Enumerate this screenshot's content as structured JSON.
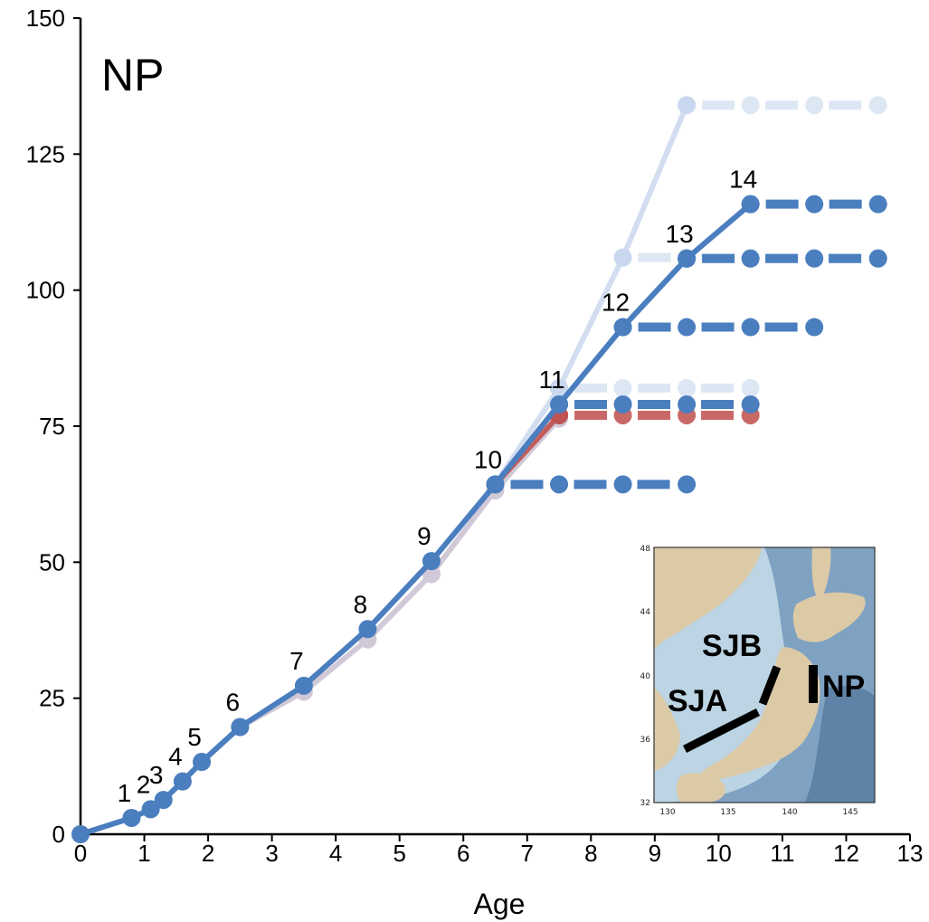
{
  "chart_data": {
    "type": "line",
    "title": "NP",
    "xlabel": "Age",
    "ylabel": "",
    "xlim": [
      0,
      13
    ],
    "ylim": [
      0,
      150
    ],
    "x_ticks": [
      0,
      1,
      2,
      3,
      4,
      5,
      6,
      7,
      8,
      9,
      10,
      11,
      12,
      13
    ],
    "y_ticks": [
      0,
      25,
      50,
      75,
      100,
      125,
      150
    ],
    "grid": false,
    "colors": {
      "blue": "#4a7ebf",
      "light_blue": "#c3d4ec",
      "red": "#c0504d",
      "purple": "#9b8aa8"
    },
    "stage_labels": [
      {
        "text": "1",
        "x": 0.8,
        "y": 3
      },
      {
        "text": "2",
        "x": 1.1,
        "y": 4.6
      },
      {
        "text": "3",
        "x": 1.3,
        "y": 6.3
      },
      {
        "text": "4",
        "x": 1.6,
        "y": 9.7
      },
      {
        "text": "5",
        "x": 1.9,
        "y": 13.3
      },
      {
        "text": "6",
        "x": 2.5,
        "y": 19.7
      },
      {
        "text": "7",
        "x": 3.5,
        "y": 27.3
      },
      {
        "text": "8",
        "x": 4.5,
        "y": 37.7
      },
      {
        "text": "9",
        "x": 5.5,
        "y": 50.2
      },
      {
        "text": "10",
        "x": 6.5,
        "y": 64.3
      },
      {
        "text": "11",
        "x": 7.5,
        "y": 79
      },
      {
        "text": "12",
        "x": 8.5,
        "y": 93.2
      },
      {
        "text": "13",
        "x": 9.5,
        "y": 105.8
      },
      {
        "text": "14",
        "x": 10.5,
        "y": 115.8
      }
    ],
    "growth_series": [
      {
        "color": "purple",
        "opacity": 0.45,
        "points": [
          [
            0,
            0
          ],
          [
            0.8,
            3
          ],
          [
            1.1,
            4.6
          ],
          [
            1.3,
            6.3
          ],
          [
            1.6,
            9.7
          ],
          [
            1.9,
            13.3
          ],
          [
            2.5,
            19.7
          ],
          [
            3.5,
            26.2
          ],
          [
            4.5,
            35.8
          ],
          [
            5.5,
            47.8
          ],
          [
            6.5,
            63.2
          ],
          [
            7.5,
            76.4
          ]
        ]
      },
      {
        "color": "red",
        "opacity": 0.9,
        "points": [
          [
            6.5,
            64.3
          ],
          [
            7.5,
            77
          ]
        ]
      },
      {
        "color": "light_blue",
        "opacity": 0.75,
        "points": [
          [
            6.5,
            64.3
          ],
          [
            7.5,
            82
          ],
          [
            8.5,
            106
          ],
          [
            9.5,
            134
          ]
        ]
      },
      {
        "color": "blue",
        "opacity": 1,
        "points": [
          [
            0,
            0
          ],
          [
            0.8,
            3
          ],
          [
            1.1,
            4.6
          ],
          [
            1.3,
            6.3
          ],
          [
            1.6,
            9.7
          ],
          [
            1.9,
            13.3
          ],
          [
            2.5,
            19.7
          ],
          [
            3.5,
            27.3
          ],
          [
            4.5,
            37.7
          ],
          [
            5.5,
            50.2
          ],
          [
            6.5,
            64.3
          ],
          [
            7.5,
            79
          ],
          [
            8.5,
            93.2
          ],
          [
            9.5,
            105.8
          ],
          [
            10.5,
            115.8
          ]
        ]
      }
    ],
    "plateau_series": [
      {
        "color": "light_blue",
        "opacity": 0.55,
        "y": 134,
        "x": [
          9.5,
          10.5,
          11.5,
          12.5
        ]
      },
      {
        "color": "light_blue",
        "opacity": 0.55,
        "y": 106,
        "x": [
          8.5,
          9.5,
          10.5,
          11.5,
          12.5
        ]
      },
      {
        "color": "light_blue",
        "opacity": 0.55,
        "y": 82,
        "x": [
          7.5,
          8.5,
          9.5,
          10.5
        ]
      },
      {
        "color": "red",
        "opacity": 0.85,
        "y": 77,
        "x": [
          7.5,
          8.5,
          9.5,
          10.5
        ]
      },
      {
        "color": "blue",
        "opacity": 1,
        "y": 115.8,
        "x": [
          10.5,
          11.5,
          12.5
        ]
      },
      {
        "color": "blue",
        "opacity": 1,
        "y": 105.8,
        "x": [
          9.5,
          10.5,
          11.5,
          12.5
        ]
      },
      {
        "color": "blue",
        "opacity": 1,
        "y": 93.2,
        "x": [
          8.5,
          9.5,
          10.5,
          11.5
        ]
      },
      {
        "color": "blue",
        "opacity": 1,
        "y": 79,
        "x": [
          7.5,
          8.5,
          9.5,
          10.5
        ]
      },
      {
        "color": "blue",
        "opacity": 1,
        "y": 64.3,
        "x": [
          6.5,
          7.5,
          8.5,
          9.5
        ]
      }
    ]
  },
  "inset_map": {
    "lat_ticks": [
      "48",
      "44",
      "40",
      "36",
      "32"
    ],
    "lon_ticks": [
      "130",
      "135",
      "140",
      "145"
    ],
    "labels": {
      "sjb": "SJB",
      "sja": "SJA",
      "np": "NP"
    },
    "colors": {
      "sea": "#7fa2c2",
      "deep_sea": "#5e83a6",
      "shelf": "#bcd4e3",
      "land": "#dcc9a6"
    }
  }
}
